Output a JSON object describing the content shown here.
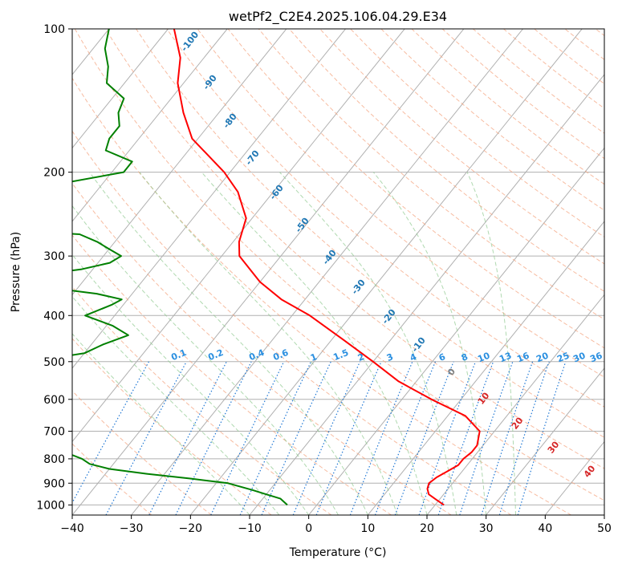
{
  "chart_data": {
    "type": "line",
    "title": "wetPf2_C2E4.2025.106.04.29.E34",
    "xlabel": "Temperature (°C)",
    "ylabel": "Pressure (hPa)",
    "xlim": [
      -40,
      50
    ],
    "ylim": [
      1050,
      100
    ],
    "y_scale": "log",
    "grid": true,
    "x_ticks": [
      "−40",
      "−30",
      "−20",
      "−10",
      "0",
      "10",
      "20",
      "30",
      "40",
      "50"
    ],
    "y_ticks": [
      "100",
      "200",
      "300",
      "400",
      "500",
      "600",
      "700",
      "800",
      "900",
      "1000"
    ],
    "series": [
      {
        "color": "#ff0000",
        "pressure": [
          1000,
          975,
          950,
          925,
          900,
          875,
          850,
          825,
          800,
          775,
          750,
          700,
          650,
          600,
          550,
          500,
          450,
          400,
          370,
          340,
          300,
          280,
          250,
          220,
          200,
          170,
          150,
          130,
          115,
          100
        ],
        "temperature": [
          21.5,
          19.5,
          17.5,
          16.5,
          16.0,
          16.5,
          17.5,
          18.5,
          18.5,
          19.0,
          19.0,
          17.5,
          13.0,
          5.0,
          -3.0,
          -10.0,
          -18.0,
          -27.0,
          -34.0,
          -40.0,
          -47.0,
          -49.0,
          -51.0,
          -56.0,
          -61.0,
          -71.0,
          -76.0,
          -81.0,
          -84.0,
          -89.0
        ]
      },
      {
        "color": "#008000",
        "pressure": [
          1000,
          970,
          950,
          930,
          900,
          880,
          860,
          840,
          820,
          800,
          780,
          760,
          740,
          710,
          680,
          650,
          620,
          600,
          580,
          550,
          520,
          500,
          480,
          460,
          440,
          420,
          400,
          380,
          370,
          360,
          345,
          330,
          320,
          310,
          300,
          290,
          280,
          270,
          265,
          255,
          240,
          225,
          215,
          210,
          200,
          190,
          180,
          170,
          160,
          150,
          140,
          130,
          120,
          110,
          100
        ],
        "dewpoint": [
          -5.0,
          -7.0,
          -10.0,
          -13.0,
          -18.0,
          -25.0,
          -33.0,
          -40.0,
          -44.0,
          -46.0,
          -49.0,
          -50.0,
          -52.0,
          -54.0,
          -55.0,
          -55.0,
          -56.0,
          -57.0,
          -58.0,
          -59.0,
          -62.0,
          -68.0,
          -60.0,
          -58.0,
          -55.0,
          -59.0,
          -65.0,
          -62.0,
          -61.0,
          -66.0,
          -79.0,
          -80.0,
          -72.0,
          -68.0,
          -67.0,
          -70.0,
          -73.0,
          -77.0,
          -89.0,
          -91.0,
          -91.0,
          -92.0,
          -90.0,
          -86.0,
          -78.0,
          -78.0,
          -84.0,
          -85.0,
          -85.0,
          -87.0,
          -88.0,
          -93.0,
          -95.0,
          -98.0,
          -100.0
        ]
      }
    ],
    "reference_lines": {
      "dry_adiabats": [
        "-100",
        "-90",
        "-80",
        "-70",
        "-60",
        "-50",
        "-40",
        "-30",
        "-20",
        "-10",
        "0",
        "10",
        "20",
        "30",
        "40"
      ],
      "mixing_ratios": [
        "0.1",
        "0.2",
        "0.4",
        "0.6",
        "1",
        "1.5",
        "2",
        "3",
        "4",
        "6",
        "8",
        "10",
        "13",
        "16",
        "20",
        "25",
        "30",
        "36"
      ]
    },
    "colors": {
      "temperature": "#ff0000",
      "dewpoint": "#008000",
      "isotherm_grid": "#b0b0b0",
      "dry_adiabat": "#f4a582",
      "moist_adiabat": "#8fc98f",
      "mixing_ratio": "#1f77d4",
      "label_cold": "#1f77b4",
      "label_warm": "#d62728",
      "label_zero": "#808080",
      "label_mixing": "#2a8fe0"
    }
  }
}
